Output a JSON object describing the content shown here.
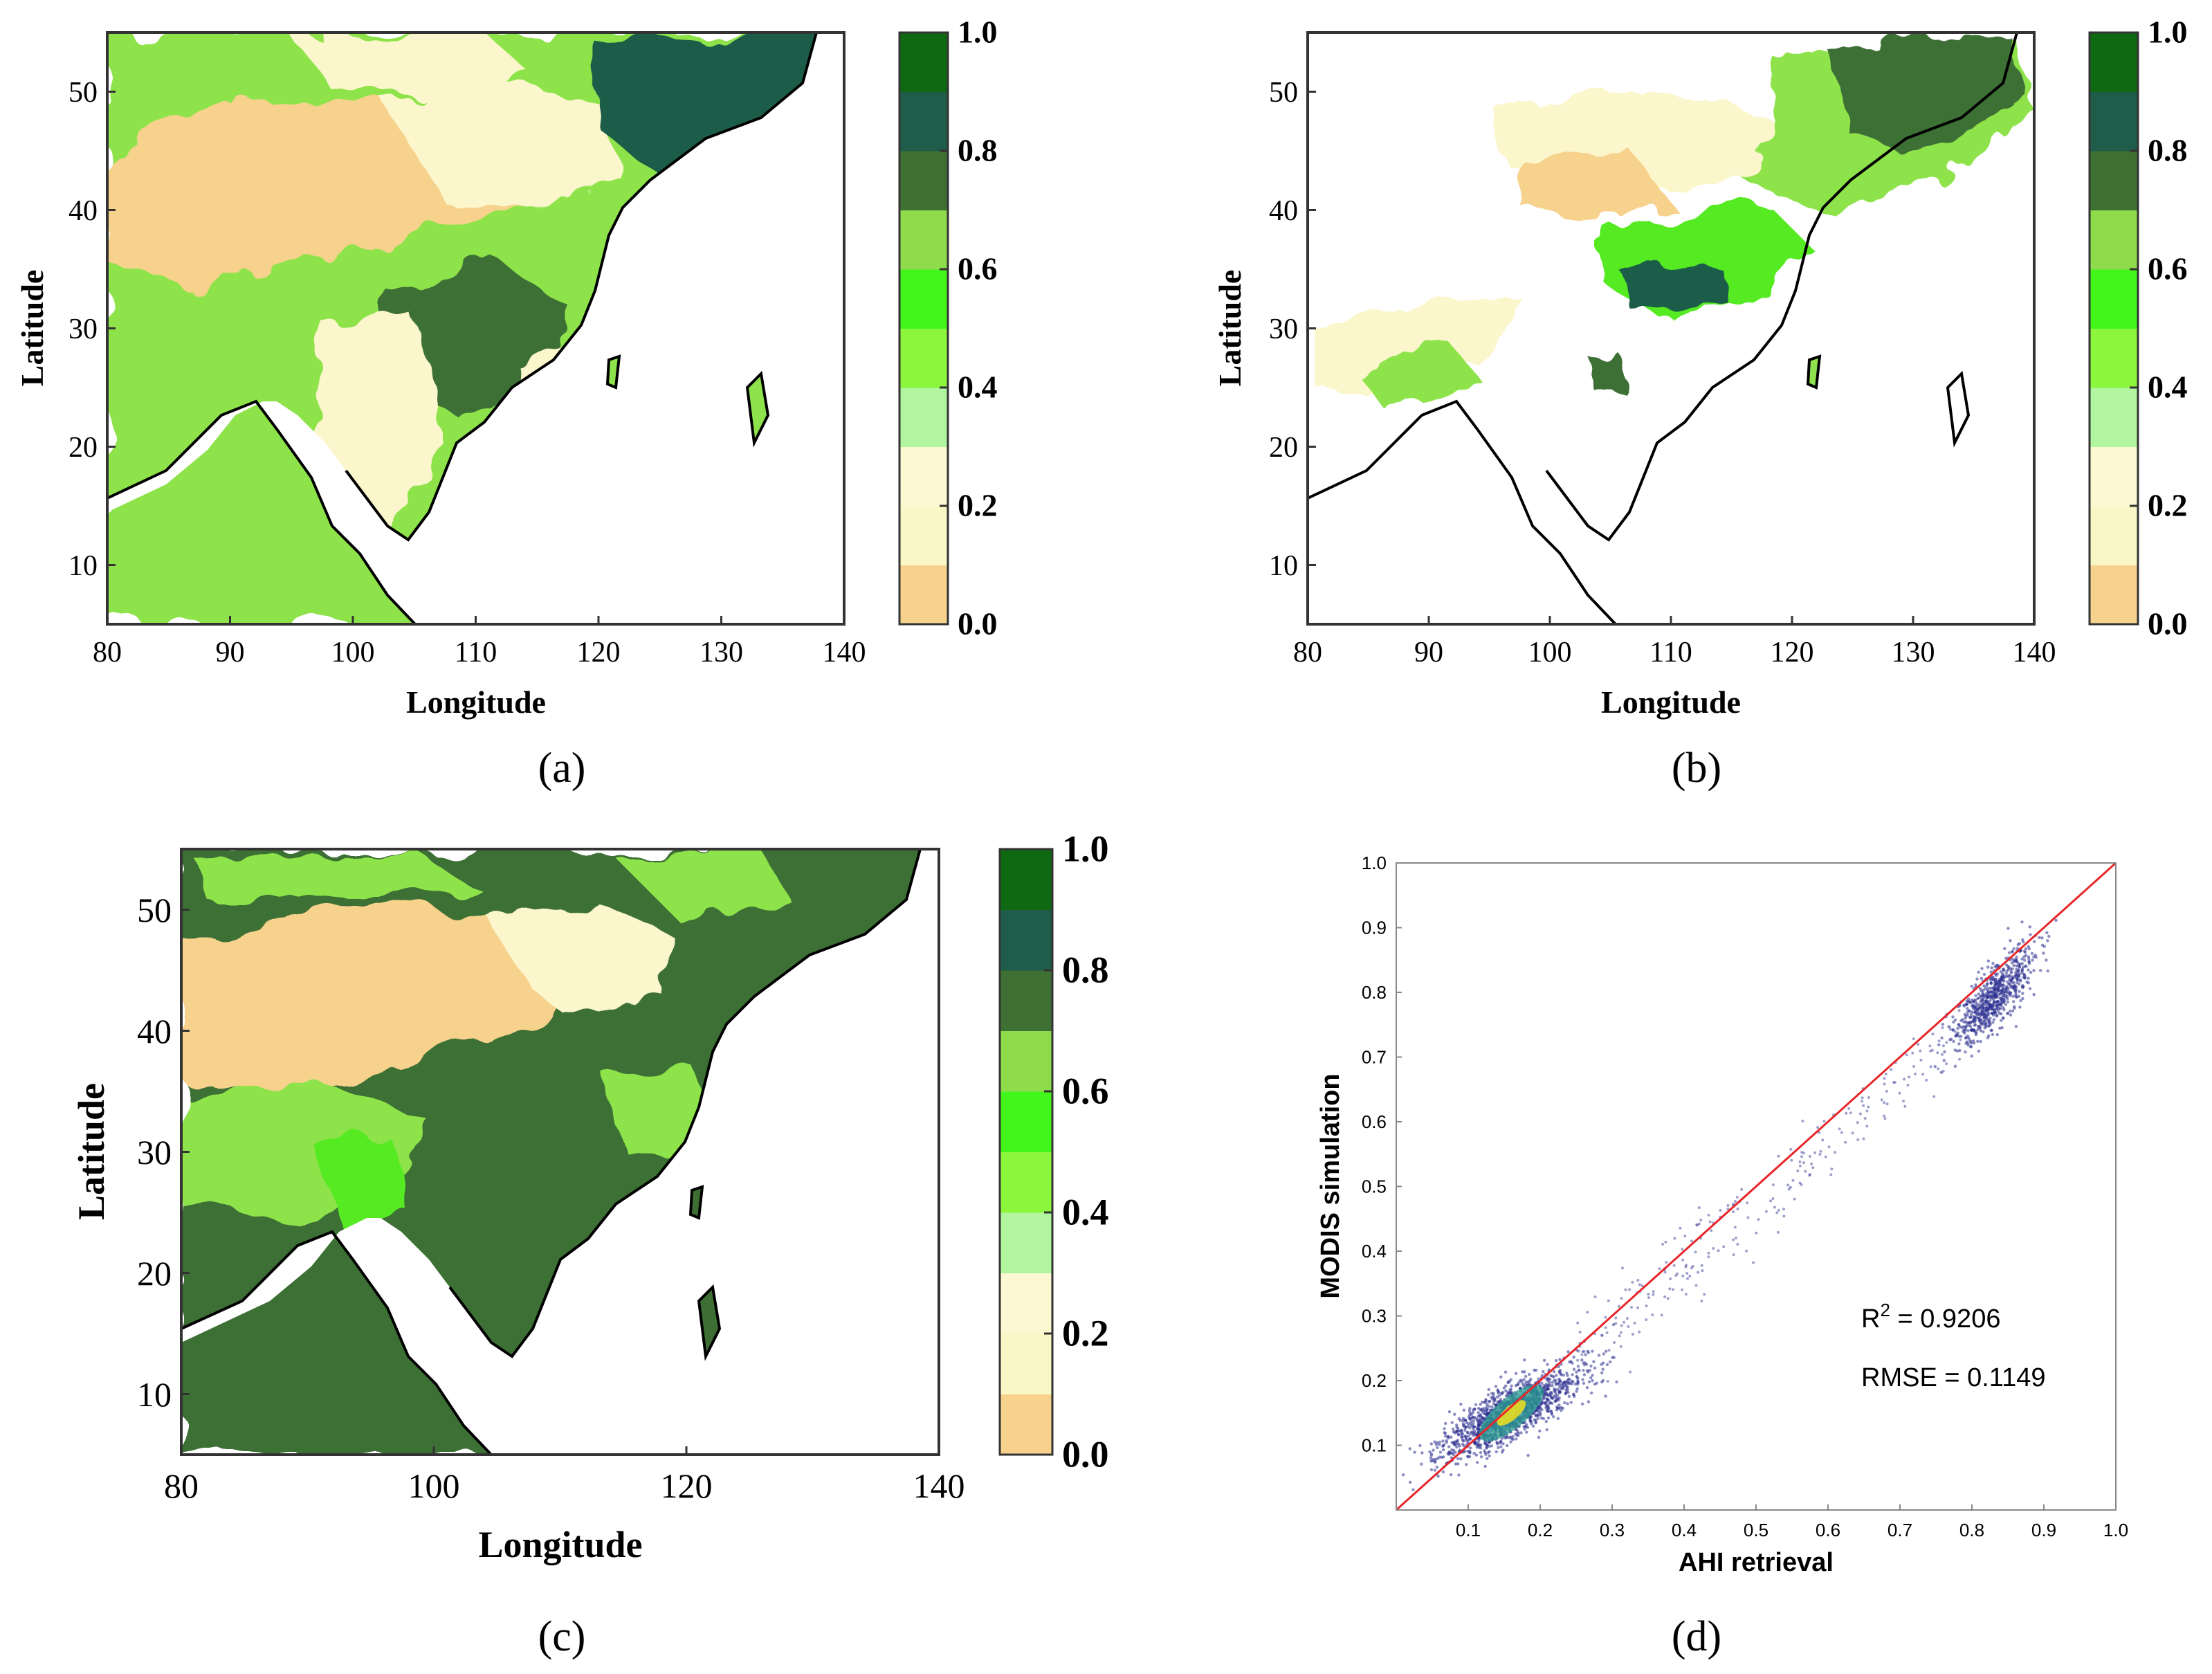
{
  "colorbar": {
    "colors": [
      "#f7d28c",
      "#f9f7c6",
      "#fcf8d2",
      "#b1f59e",
      "#8cf63d",
      "#42f61c",
      "#8edb4b",
      "#3f7033",
      "#1f5d4a",
      "#0f6812"
    ],
    "ticks": [
      "0.0",
      "0.2",
      "0.4",
      "0.6",
      "0.8",
      "1.0"
    ]
  },
  "map_colors": {
    "desert": "#f7d28c",
    "pale": "#fbf6cb",
    "light_green": "#8ee34c",
    "bright_green": "#55ea22",
    "dark_green": "#3d6f34",
    "forest": "#1f5d4a",
    "coast": "#000000"
  },
  "chart_data": [
    {
      "panel": "a",
      "type": "heatmap",
      "title": "",
      "label": "(a)",
      "xlabel": "Longitude",
      "ylabel": "Latitude",
      "xlim": [
        80,
        140
      ],
      "ylim": [
        5,
        55
      ],
      "xticks": [
        "80",
        "90",
        "100",
        "110",
        "120",
        "130",
        "140"
      ],
      "yticks": [
        "10",
        "20",
        "30",
        "40",
        "50"
      ],
      "colorbar_range": [
        0,
        1
      ]
    },
    {
      "panel": "b",
      "type": "heatmap",
      "title": "",
      "label": "(b)",
      "xlabel": "Longitude",
      "ylabel": "Latitude",
      "xlim": [
        80,
        140
      ],
      "ylim": [
        5,
        55
      ],
      "xticks": [
        "80",
        "90",
        "100",
        "110",
        "120",
        "130",
        "140"
      ],
      "yticks": [
        "10",
        "20",
        "30",
        "40",
        "50"
      ],
      "colorbar_range": [
        0,
        1
      ]
    },
    {
      "panel": "c",
      "type": "heatmap",
      "title": "",
      "label": "(c)",
      "xlabel": "Longitude",
      "ylabel": "Latitude",
      "xlim": [
        80,
        140
      ],
      "ylim": [
        5,
        55
      ],
      "xticks": [
        "80",
        "100",
        "120",
        "140"
      ],
      "yticks": [
        "10",
        "20",
        "30",
        "40",
        "50"
      ],
      "colorbar_range": [
        0,
        1
      ]
    },
    {
      "panel": "d",
      "type": "scatter",
      "title": "",
      "label": "(d)",
      "xlabel": "AHI retrieval",
      "ylabel": "MODIS simulation",
      "xlim": [
        0,
        1
      ],
      "ylim": [
        0,
        1
      ],
      "xticks": [
        "0.1",
        "0.2",
        "0.3",
        "0.4",
        "0.5",
        "0.6",
        "0.7",
        "0.8",
        "0.9",
        "1.0"
      ],
      "yticks": [
        "0.1",
        "0.2",
        "0.3",
        "0.4",
        "0.5",
        "0.6",
        "0.7",
        "0.8",
        "0.9",
        "1.0"
      ],
      "reference_line": {
        "from": [
          0,
          0
        ],
        "to": [
          1,
          1
        ],
        "color": "#e8262a"
      },
      "point_color": "#2b2f8f",
      "dense_color": "#2a9d8f",
      "core_color": "#f2e01d",
      "clusters": [
        {
          "center": [
            0.16,
            0.15
          ],
          "spread": [
            0.05,
            0.035
          ],
          "count": 1400
        },
        {
          "center": [
            0.83,
            0.79
          ],
          "spread": [
            0.03,
            0.04
          ],
          "count": 700
        }
      ],
      "annotations": {
        "r2_prefix": "R",
        "r2_sup": "2",
        "r2_value": " = 0.9206",
        "rmse": "RMSE = 0.1149"
      }
    }
  ]
}
